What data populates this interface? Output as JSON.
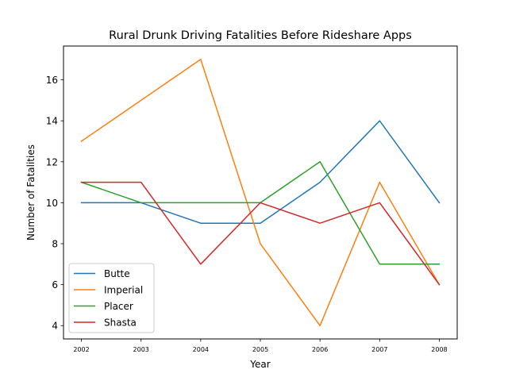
{
  "chart_data": {
    "type": "line",
    "title": "Rural Drunk Driving Fatalities Before Rideshare Apps",
    "xlabel": "Year",
    "ylabel": "Number of Fatalities",
    "x": [
      "2002",
      "2003",
      "2004",
      "2005",
      "2006",
      "2007",
      "2008"
    ],
    "xlim": [
      2001.7,
      2008.3
    ],
    "ylim": [
      3.35,
      17.65
    ],
    "yticks": [
      4,
      6,
      8,
      10,
      12,
      14,
      16
    ],
    "grid": false,
    "legend_position": "lower-left",
    "series": [
      {
        "name": "Butte",
        "color": "#1f77b4",
        "values": [
          10,
          10,
          9,
          9,
          11,
          14,
          10
        ]
      },
      {
        "name": "Imperial",
        "color": "#ff7f0e",
        "values": [
          13,
          15,
          17,
          8,
          4,
          11,
          6
        ]
      },
      {
        "name": "Placer",
        "color": "#2ca02c",
        "values": [
          11,
          10,
          10,
          10,
          12,
          7,
          7
        ]
      },
      {
        "name": "Shasta",
        "color": "#d62728",
        "values": [
          11,
          11,
          7,
          10,
          9,
          10,
          6
        ]
      }
    ]
  }
}
